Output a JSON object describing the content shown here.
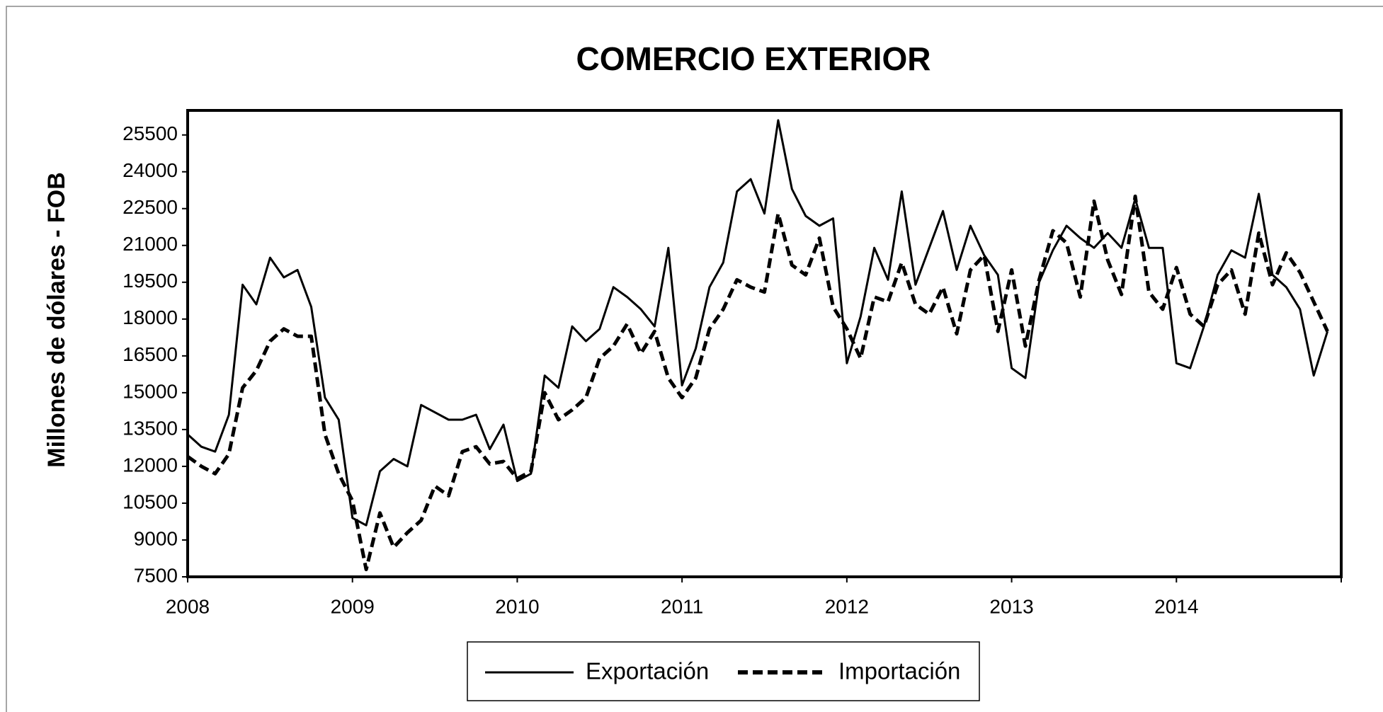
{
  "chart_data": {
    "type": "line",
    "title": "COMERCIO EXTERIOR",
    "y_label": "Millones de dólares - FOB",
    "categories": [
      "2008",
      null,
      null,
      null,
      null,
      null,
      null,
      null,
      null,
      null,
      null,
      null,
      "2009",
      null,
      null,
      null,
      null,
      null,
      null,
      null,
      null,
      null,
      null,
      null,
      "2010",
      null,
      null,
      null,
      null,
      null,
      null,
      null,
      null,
      null,
      null,
      null,
      "2011",
      null,
      null,
      null,
      null,
      null,
      null,
      null,
      null,
      null,
      null,
      null,
      "2012",
      null,
      null,
      null,
      null,
      null,
      null,
      null,
      null,
      null,
      null,
      null,
      "2013",
      null,
      null,
      null,
      null,
      null,
      null,
      null,
      null,
      null,
      null,
      null,
      "2014",
      null,
      null,
      null,
      null,
      null,
      null,
      null,
      null,
      null,
      null,
      null
    ],
    "series": [
      {
        "name": "Exportación",
        "color": "#000000",
        "style": "solid",
        "values": [
          13300,
          12800,
          12600,
          14100,
          19400,
          18600,
          20500,
          19700,
          20000,
          18500,
          14800,
          13900,
          9900,
          9600,
          11800,
          12300,
          12000,
          14500,
          14200,
          13900,
          13900,
          14100,
          12700,
          13700,
          11400,
          11700,
          15700,
          15200,
          17700,
          17100,
          17600,
          19300,
          18900,
          18400,
          17700,
          20900,
          15300,
          16800,
          19300,
          20300,
          23200,
          23700,
          22300,
          26100,
          23300,
          22200,
          21800,
          22100,
          16200,
          18100,
          20900,
          19600,
          23200,
          19400,
          20900,
          22400,
          20000,
          21800,
          20600,
          19800,
          16000,
          15600,
          19500,
          20800,
          21800,
          21300,
          20900,
          21500,
          20900,
          22900,
          20900,
          20900,
          16200,
          16000,
          17700,
          19800,
          20800,
          20500,
          23100,
          19800,
          19300,
          18400,
          15700,
          17500
        ]
      },
      {
        "name": "Importación",
        "color": "#000000",
        "style": "dashed",
        "values": [
          12400,
          12000,
          11700,
          12500,
          15200,
          15900,
          17100,
          17600,
          17300,
          17300,
          13300,
          11700,
          10600,
          7800,
          10100,
          8700,
          9300,
          9800,
          11200,
          10800,
          12600,
          12800,
          12100,
          12200,
          11500,
          11800,
          15000,
          13900,
          14300,
          14800,
          16400,
          16900,
          17800,
          16600,
          17500,
          15600,
          14800,
          15600,
          17600,
          18400,
          19600,
          19300,
          19100,
          22300,
          20200,
          19800,
          21300,
          18500,
          17600,
          16400,
          18900,
          18700,
          20300,
          18600,
          18200,
          19300,
          17400,
          20000,
          20600,
          17500,
          20000,
          16900,
          19600,
          21600,
          21100,
          18900,
          22800,
          20400,
          19000,
          23000,
          19100,
          18400,
          20100,
          18200,
          17700,
          19400,
          20000,
          18200,
          21500,
          19400,
          20700,
          19900,
          18700,
          17500
        ]
      }
    ],
    "ylim": [
      7500,
      26500
    ],
    "yticks": [
      7500,
      9000,
      10500,
      12000,
      13500,
      15000,
      16500,
      18000,
      19500,
      21000,
      22500,
      24000,
      25500
    ],
    "grid": false
  }
}
